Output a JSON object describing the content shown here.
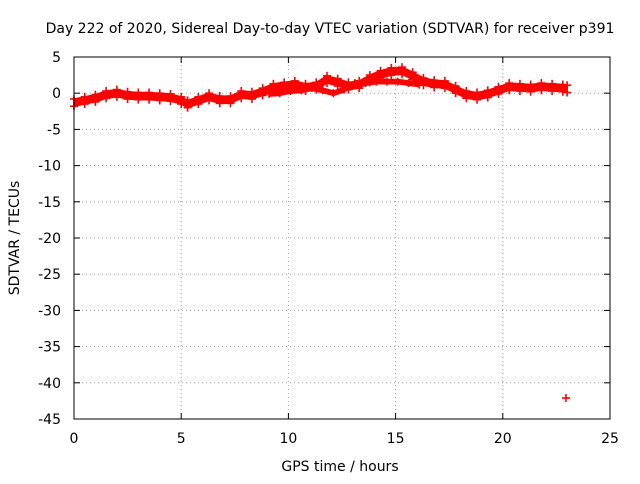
{
  "chart_data": {
    "type": "scatter",
    "title": "Day 222 of 2020, Sidereal Day-to-day VTEC variation (SDTVAR) for receiver p391",
    "xlabel": "GPS time / hours",
    "ylabel": "SDTVAR / TECUs",
    "xlim": [
      0,
      25
    ],
    "ylim": [
      -45,
      5
    ],
    "xticks": [
      0,
      5,
      10,
      15,
      20,
      25
    ],
    "yticks": [
      5,
      0,
      -5,
      -10,
      -15,
      -20,
      -25,
      -30,
      -35,
      -40,
      -45
    ],
    "grid": true,
    "marker": "plus",
    "series": [
      {
        "name": "SDTVAR",
        "color": "#ff0000",
        "band_half_width": 0.5,
        "trace": [
          {
            "x": 0.0,
            "y": -1.3
          },
          {
            "x": 0.5,
            "y": -1.0
          },
          {
            "x": 1.0,
            "y": -0.7
          },
          {
            "x": 1.5,
            "y": -0.2
          },
          {
            "x": 2.0,
            "y": 0.0
          },
          {
            "x": 2.5,
            "y": -0.3
          },
          {
            "x": 3.0,
            "y": -0.4
          },
          {
            "x": 3.5,
            "y": -0.4
          },
          {
            "x": 4.0,
            "y": -0.5
          },
          {
            "x": 4.5,
            "y": -0.6
          },
          {
            "x": 5.0,
            "y": -1.0
          },
          {
            "x": 5.3,
            "y": -1.5
          },
          {
            "x": 5.8,
            "y": -1.0
          },
          {
            "x": 6.3,
            "y": -0.5
          },
          {
            "x": 6.8,
            "y": -0.9
          },
          {
            "x": 7.3,
            "y": -0.9
          },
          {
            "x": 7.8,
            "y": -0.2
          },
          {
            "x": 8.3,
            "y": -0.3
          },
          {
            "x": 8.8,
            "y": 0.2
          },
          {
            "x": 9.3,
            "y": 0.8
          },
          {
            "x": 9.8,
            "y": 1.0
          },
          {
            "x": 10.3,
            "y": 1.2
          },
          {
            "x": 10.8,
            "y": 0.8
          },
          {
            "x": 11.3,
            "y": 1.0
          },
          {
            "x": 11.8,
            "y": 1.9
          },
          {
            "x": 12.3,
            "y": 1.5
          },
          {
            "x": 12.8,
            "y": 1.0
          },
          {
            "x": 13.3,
            "y": 1.2
          },
          {
            "x": 13.8,
            "y": 2.0
          },
          {
            "x": 14.3,
            "y": 2.6
          },
          {
            "x": 14.8,
            "y": 3.0
          },
          {
            "x": 15.3,
            "y": 3.1
          },
          {
            "x": 15.8,
            "y": 2.4
          },
          {
            "x": 16.3,
            "y": 1.6
          },
          {
            "x": 16.8,
            "y": 1.3
          },
          {
            "x": 17.3,
            "y": 1.2
          },
          {
            "x": 17.8,
            "y": 0.5
          },
          {
            "x": 18.3,
            "y": -0.2
          },
          {
            "x": 18.8,
            "y": -0.4
          },
          {
            "x": 19.3,
            "y": -0.1
          },
          {
            "x": 19.8,
            "y": 0.4
          },
          {
            "x": 20.3,
            "y": 0.9
          },
          {
            "x": 20.8,
            "y": 0.8
          },
          {
            "x": 21.3,
            "y": 0.7
          },
          {
            "x": 21.8,
            "y": 0.9
          },
          {
            "x": 22.3,
            "y": 0.8
          },
          {
            "x": 22.8,
            "y": 0.7
          },
          {
            "x": 23.0,
            "y": 0.6
          }
        ],
        "loops": [
          {
            "x": 9.1,
            "y": -0.1
          },
          {
            "x": 9.6,
            "y": 0.0
          },
          {
            "x": 10.1,
            "y": 0.3
          },
          {
            "x": 10.6,
            "y": 0.4
          },
          {
            "x": 11.1,
            "y": 0.7
          },
          {
            "x": 11.6,
            "y": 0.4
          },
          {
            "x": 12.1,
            "y": 0.0
          },
          {
            "x": 12.6,
            "y": 0.5
          },
          {
            "x": 13.1,
            "y": 1.4
          },
          {
            "x": 13.6,
            "y": 1.4
          },
          {
            "x": 14.1,
            "y": 1.6
          },
          {
            "x": 14.6,
            "y": 1.6
          },
          {
            "x": 15.1,
            "y": 1.6
          },
          {
            "x": 15.6,
            "y": 1.4
          },
          {
            "x": 16.1,
            "y": 1.2
          }
        ],
        "outliers": [
          {
            "x": 22.95,
            "y": -42.1
          }
        ]
      }
    ]
  }
}
